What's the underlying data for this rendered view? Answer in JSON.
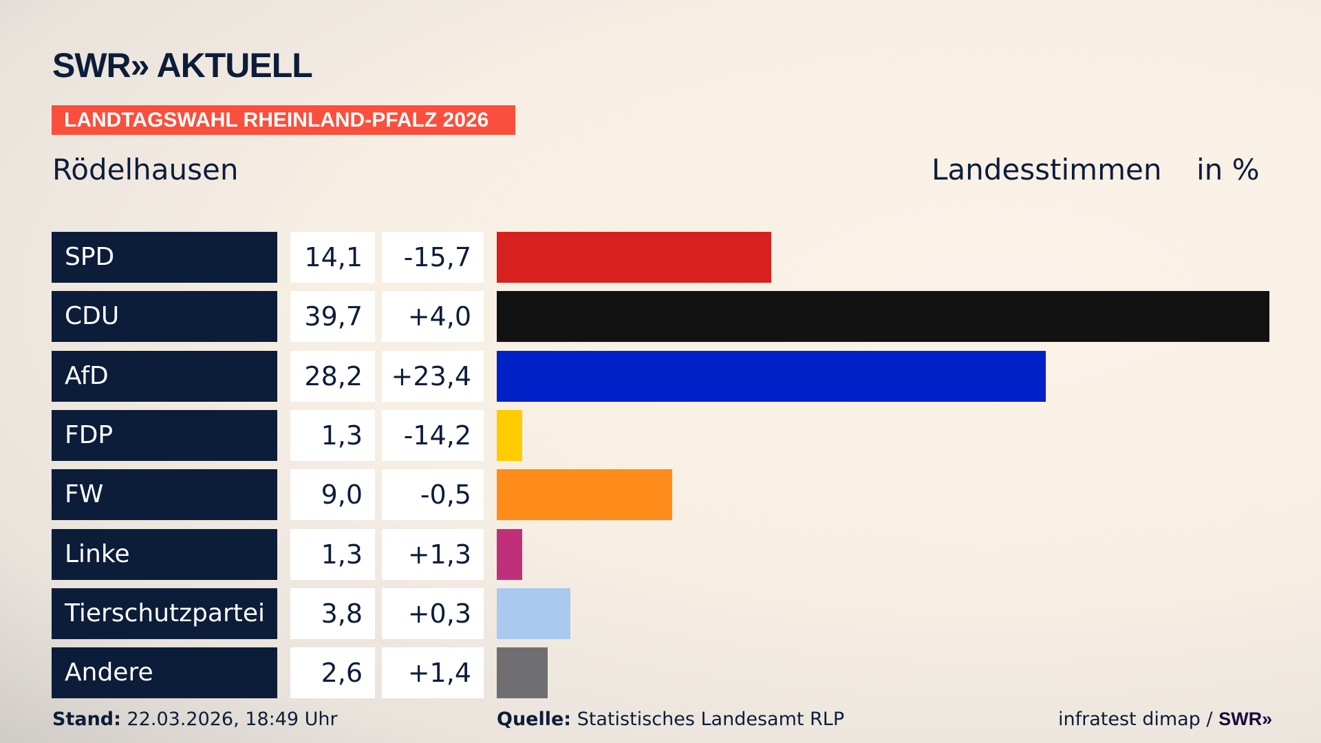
{
  "header": {
    "logo": "SWR» AKTUELL",
    "banner": "LANDTAGSWAHL RHEINLAND-PFALZ 2026",
    "location": "Rödelhausen",
    "measure": "Landesstimmen",
    "unit": "in %"
  },
  "chart_data": {
    "type": "bar",
    "orientation": "horizontal",
    "categories": [
      "SPD",
      "CDU",
      "AfD",
      "FDP",
      "FW",
      "Linke",
      "Tierschutzpartei",
      "Andere"
    ],
    "values": [
      "14,1",
      "39,7",
      "28,2",
      "1,3",
      "9,0",
      "1,3",
      "3,8",
      "2,6"
    ],
    "numeric_values": [
      14.1,
      39.7,
      28.2,
      1.3,
      9.0,
      1.3,
      3.8,
      2.6
    ],
    "changes": [
      "-15,7",
      "+4,0",
      "+23,4",
      "-14,2",
      "-0,5",
      "+1,3",
      "+0,3",
      "+1,4"
    ],
    "colors": [
      "#d82020",
      "#121212",
      "#0021c8",
      "#ffcc00",
      "#ff8c1a",
      "#c0307a",
      "#a9c9ef",
      "#6f6f72"
    ],
    "xlim": [
      0,
      39.7
    ],
    "grid": false
  },
  "footer": {
    "stand_label": "Stand:",
    "stand_value": "22.03.2026, 18:49 Uhr",
    "source_label": "Quelle:",
    "source_value": "Statistisches Landesamt RLP",
    "credit": "infratest dimap /",
    "credit_logo": "SWR»"
  }
}
